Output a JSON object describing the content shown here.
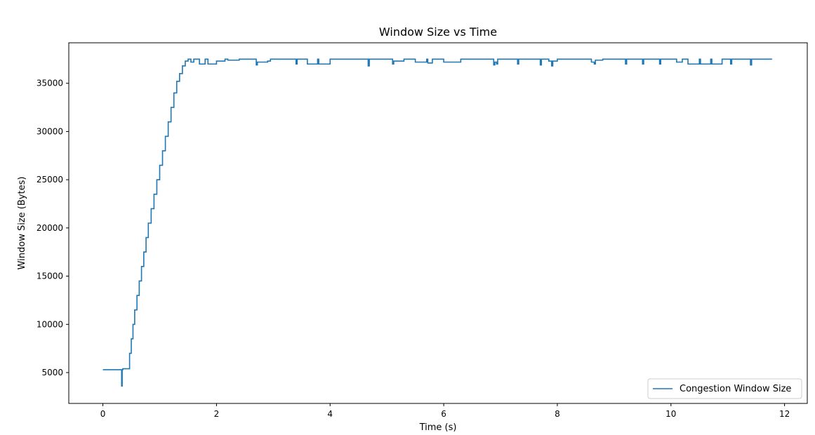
{
  "chart_data": {
    "type": "line",
    "title": "Window Size vs Time",
    "xlabel": "Time (s)",
    "ylabel": "Window Size (Bytes)",
    "xlim": [
      -0.6,
      12.4
    ],
    "ylim": [
      1800,
      39200
    ],
    "xticks": [
      0,
      2,
      4,
      6,
      8,
      10,
      12
    ],
    "yticks": [
      5000,
      10000,
      15000,
      20000,
      25000,
      30000,
      35000
    ],
    "grid": false,
    "legend_position": "bottom-right",
    "line_color": "#1f77b4",
    "series": [
      {
        "name": "Congestion Window Size",
        "step": true,
        "x": [
          0,
          0.33,
          0.34,
          0.35,
          0.44,
          0.47,
          0.5,
          0.53,
          0.56,
          0.6,
          0.64,
          0.68,
          0.72,
          0.76,
          0.8,
          0.85,
          0.9,
          0.95,
          1.0,
          1.05,
          1.1,
          1.15,
          1.2,
          1.25,
          1.3,
          1.35,
          1.4,
          1.45,
          1.5,
          1.55,
          1.6,
          1.7,
          1.8,
          1.85,
          1.9,
          2.0,
          2.15,
          2.2,
          2.4,
          2.7,
          2.72,
          2.9,
          2.95,
          3.1,
          3.4,
          3.42,
          3.5,
          3.6,
          3.78,
          3.8,
          4.0,
          4.5,
          4.67,
          4.69,
          5.1,
          5.12,
          5.3,
          5.5,
          5.7,
          5.72,
          5.8,
          6.0,
          6.3,
          6.6,
          6.88,
          6.9,
          6.93,
          6.95,
          7.0,
          7.3,
          7.32,
          7.5,
          7.7,
          7.72,
          7.85,
          7.9,
          7.92,
          8.0,
          8.5,
          8.6,
          8.65,
          8.67,
          8.8,
          9.0,
          9.2,
          9.22,
          9.5,
          9.52,
          9.8,
          9.82,
          10.1,
          10.2,
          10.3,
          10.5,
          10.52,
          10.7,
          10.72,
          10.9,
          11.05,
          11.07,
          11.4,
          11.42,
          11.78
        ],
        "values": [
          5300,
          3600,
          5300,
          5400,
          5400,
          7000,
          8500,
          10000,
          11500,
          13000,
          14500,
          16000,
          17500,
          19000,
          20500,
          22000,
          23500,
          25000,
          26500,
          28000,
          29500,
          31000,
          32500,
          34000,
          35200,
          36000,
          36800,
          37300,
          37500,
          37200,
          37500,
          37000,
          37500,
          37000,
          37000,
          37300,
          37500,
          37400,
          37500,
          36900,
          37200,
          37300,
          37500,
          37500,
          37000,
          37500,
          37500,
          37000,
          37500,
          37000,
          37500,
          37500,
          36800,
          37500,
          37000,
          37300,
          37500,
          37200,
          37500,
          37100,
          37500,
          37200,
          37500,
          37500,
          36900,
          37200,
          37000,
          37500,
          37500,
          37000,
          37500,
          37500,
          36900,
          37500,
          37300,
          36800,
          37300,
          37500,
          37500,
          37200,
          37000,
          37400,
          37500,
          37500,
          37000,
          37500,
          37000,
          37500,
          37000,
          37500,
          37200,
          37500,
          37000,
          37500,
          37000,
          37500,
          37000,
          37500,
          37000,
          37500,
          36900,
          37500,
          37500
        ]
      }
    ]
  }
}
